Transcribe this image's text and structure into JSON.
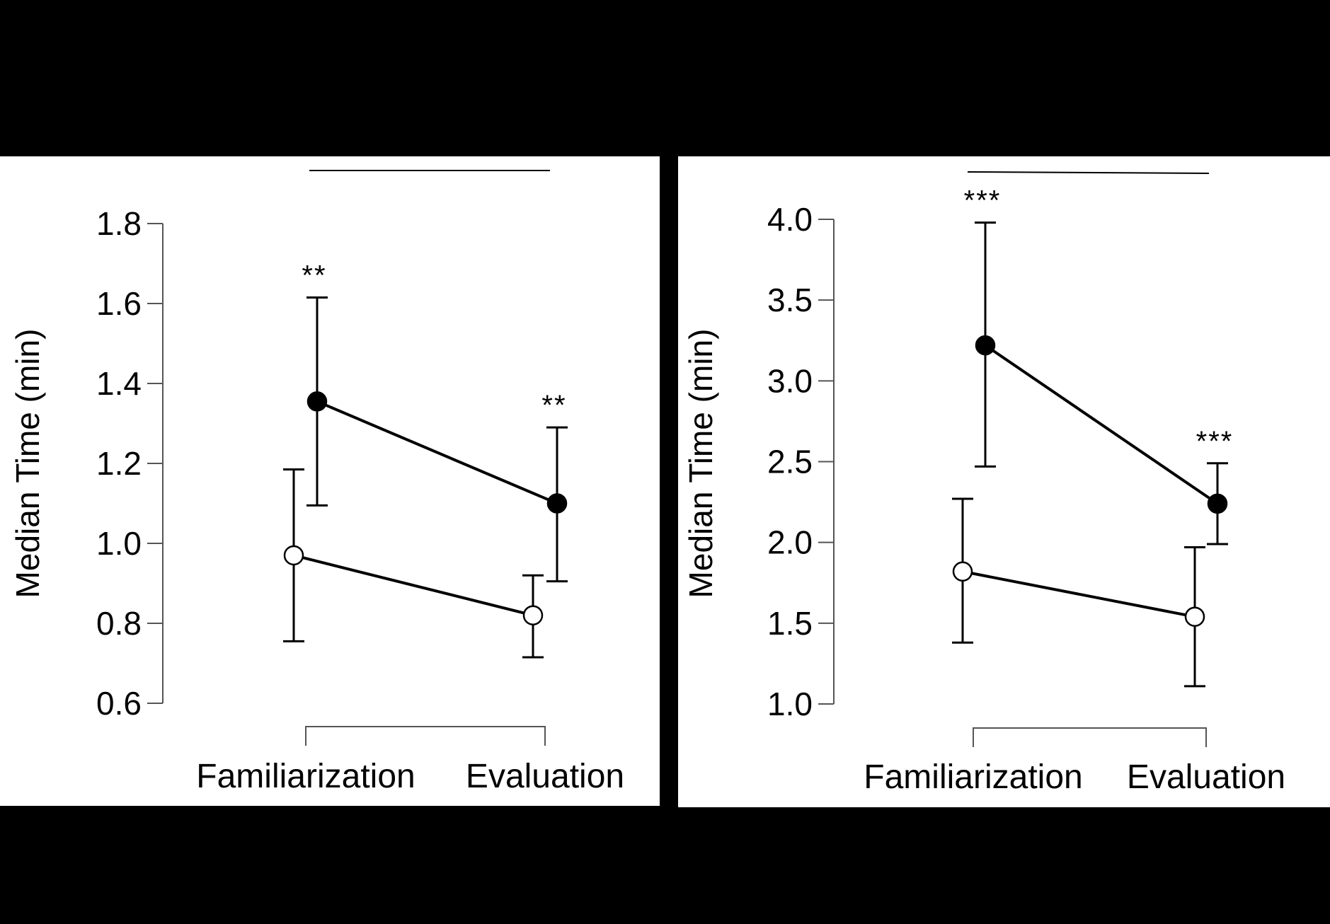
{
  "colors": {
    "background": "#000000",
    "panel": "#ffffff",
    "ink": "#000000",
    "axis": "#555555",
    "open_marker_fill": "#ffffff",
    "filled_marker_fill": "#000000"
  },
  "chart_data": [
    {
      "type": "line",
      "title": "",
      "xlabel": "",
      "ylabel": "Median Time (min)",
      "categories": [
        "Familiarization",
        "Evaluation"
      ],
      "ylim": [
        0.6,
        1.8
      ],
      "yticks": [
        0.6,
        0.8,
        1.0,
        1.2,
        1.4,
        1.6,
        1.8
      ],
      "ytick_labels": [
        "0.6",
        "0.8",
        "1.0",
        "1.2",
        "1.4",
        "1.6",
        "1.8"
      ],
      "grid": false,
      "series": [
        {
          "marker": "filled-circle",
          "values": [
            1.355,
            1.1
          ],
          "err_low": [
            1.095,
            0.905
          ],
          "err_high": [
            1.615,
            1.29
          ],
          "significance": [
            "**",
            "**"
          ]
        },
        {
          "marker": "open-circle",
          "values": [
            0.97,
            0.82
          ],
          "err_low": [
            0.755,
            0.715
          ],
          "err_high": [
            1.185,
            0.92
          ],
          "significance": [
            "",
            ""
          ]
        }
      ]
    },
    {
      "type": "line",
      "title": "",
      "xlabel": "",
      "ylabel": "Median Time (min)",
      "categories": [
        "Familiarization",
        "Evaluation"
      ],
      "ylim": [
        1.0,
        4.0
      ],
      "yticks": [
        1.0,
        1.5,
        2.0,
        2.5,
        3.0,
        3.5,
        4.0
      ],
      "ytick_labels": [
        "1.0",
        "1.5",
        "2.0",
        "2.5",
        "3.0",
        "3.5",
        "4.0"
      ],
      "grid": false,
      "series": [
        {
          "marker": "filled-circle",
          "values": [
            3.22,
            2.24
          ],
          "err_low": [
            2.47,
            1.99
          ],
          "err_high": [
            3.98,
            2.49
          ],
          "significance": [
            "***",
            "***"
          ]
        },
        {
          "marker": "open-circle",
          "values": [
            1.82,
            1.54
          ],
          "err_low": [
            1.38,
            1.11
          ],
          "err_high": [
            2.27,
            1.97
          ],
          "significance": [
            "",
            ""
          ]
        }
      ]
    }
  ]
}
